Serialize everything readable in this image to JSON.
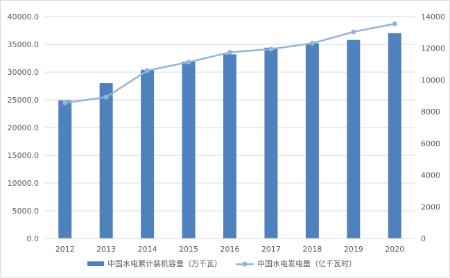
{
  "chart_data": {
    "type": "bar",
    "categories": [
      "2012",
      "2013",
      "2014",
      "2015",
      "2016",
      "2017",
      "2018",
      "2019",
      "2020"
    ],
    "series": [
      {
        "name": "中国水电累计装机容量（万千瓦）",
        "chart_type": "bar",
        "axis": "left",
        "color": "#4f81bd",
        "values": [
          24900,
          28000,
          30400,
          31900,
          33200,
          34400,
          35200,
          35800,
          37000
        ]
      },
      {
        "name": "中国水电发电量（亿千瓦时）",
        "chart_type": "line",
        "axis": "right",
        "color": "#95b3d7",
        "values": [
          8560,
          8920,
          10600,
          11130,
          11750,
          11950,
          12320,
          13040,
          13550
        ]
      }
    ],
    "y_left": {
      "min": 0,
      "max": 40000,
      "ticks": [
        "0.0",
        "5000.0",
        "10000.0",
        "15000.0",
        "20000.0",
        "25000.0",
        "30000.0",
        "35000.0",
        "40000.0"
      ]
    },
    "y_right": {
      "min": 0,
      "max": 14000,
      "ticks": [
        "0",
        "2000",
        "4000",
        "6000",
        "8000",
        "10000",
        "12000",
        "14000"
      ]
    },
    "grid": true,
    "legend_position": "bottom"
  }
}
